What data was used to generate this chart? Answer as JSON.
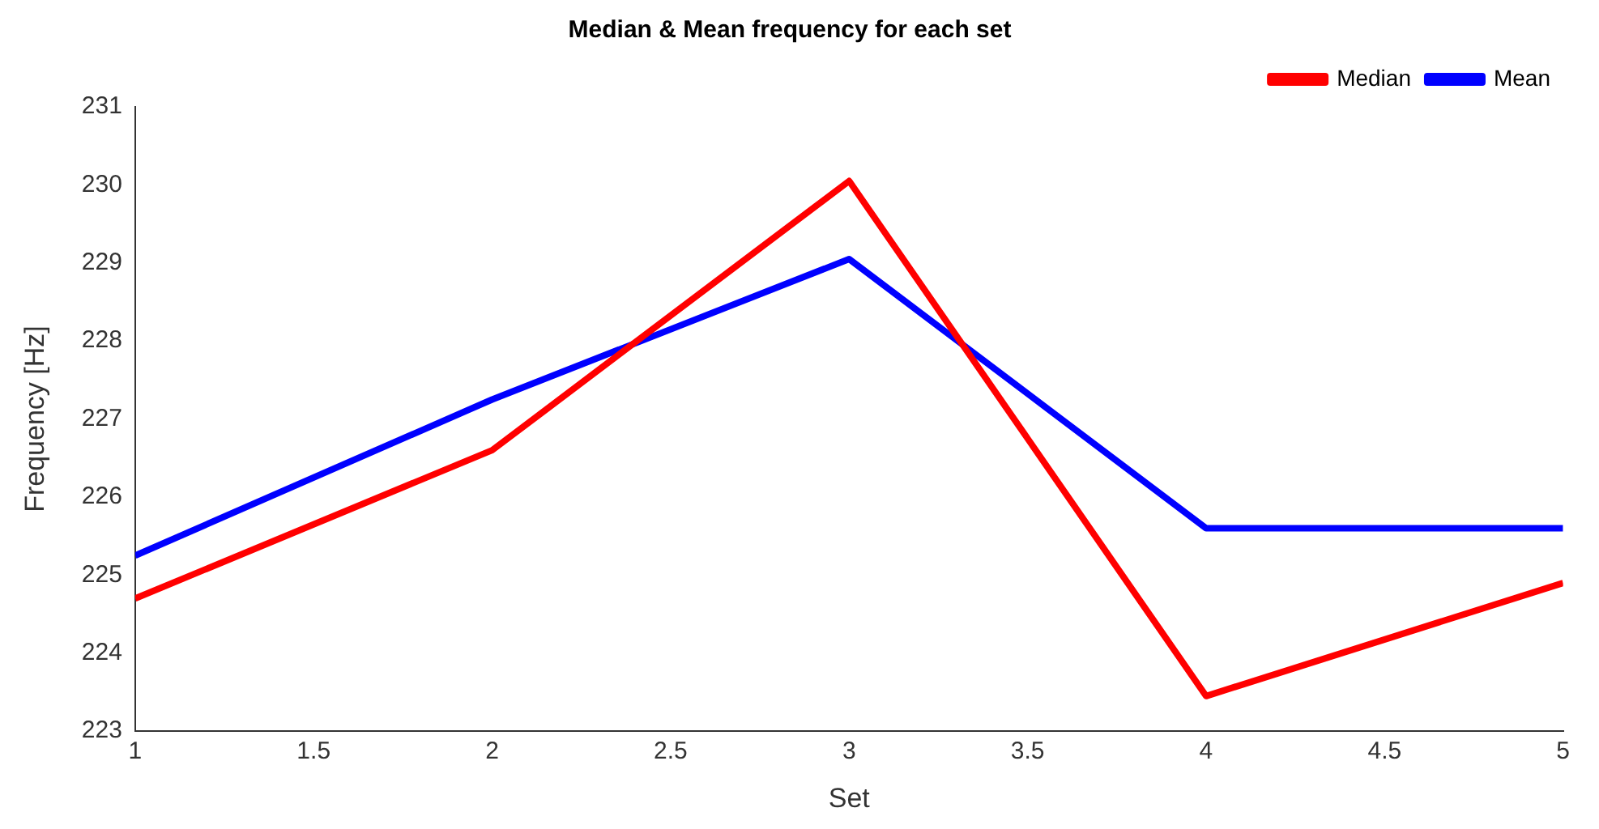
{
  "chart_data": {
    "type": "line",
    "title": "Median & Mean frequency for each set",
    "xlabel": "Set",
    "ylabel": "Frequency [Hz]",
    "x": [
      1,
      2,
      3,
      4,
      5
    ],
    "series": [
      {
        "name": "Median",
        "color": "#ff0000",
        "values": [
          224.7,
          226.6,
          230.05,
          223.45,
          224.9
        ]
      },
      {
        "name": "Mean",
        "color": "#0000ff",
        "values": [
          225.25,
          227.25,
          229.05,
          225.6,
          225.6
        ]
      }
    ],
    "xlim": [
      1,
      5
    ],
    "xticks": [
      1,
      1.5,
      2,
      2.5,
      3,
      3.5,
      4,
      4.5,
      5
    ],
    "ylim": [
      223,
      231
    ],
    "yticks": [
      223,
      224,
      225,
      226,
      227,
      228,
      229,
      230,
      231
    ],
    "grid": false,
    "legend": "top right",
    "marker": "none",
    "line_style": "solid"
  }
}
